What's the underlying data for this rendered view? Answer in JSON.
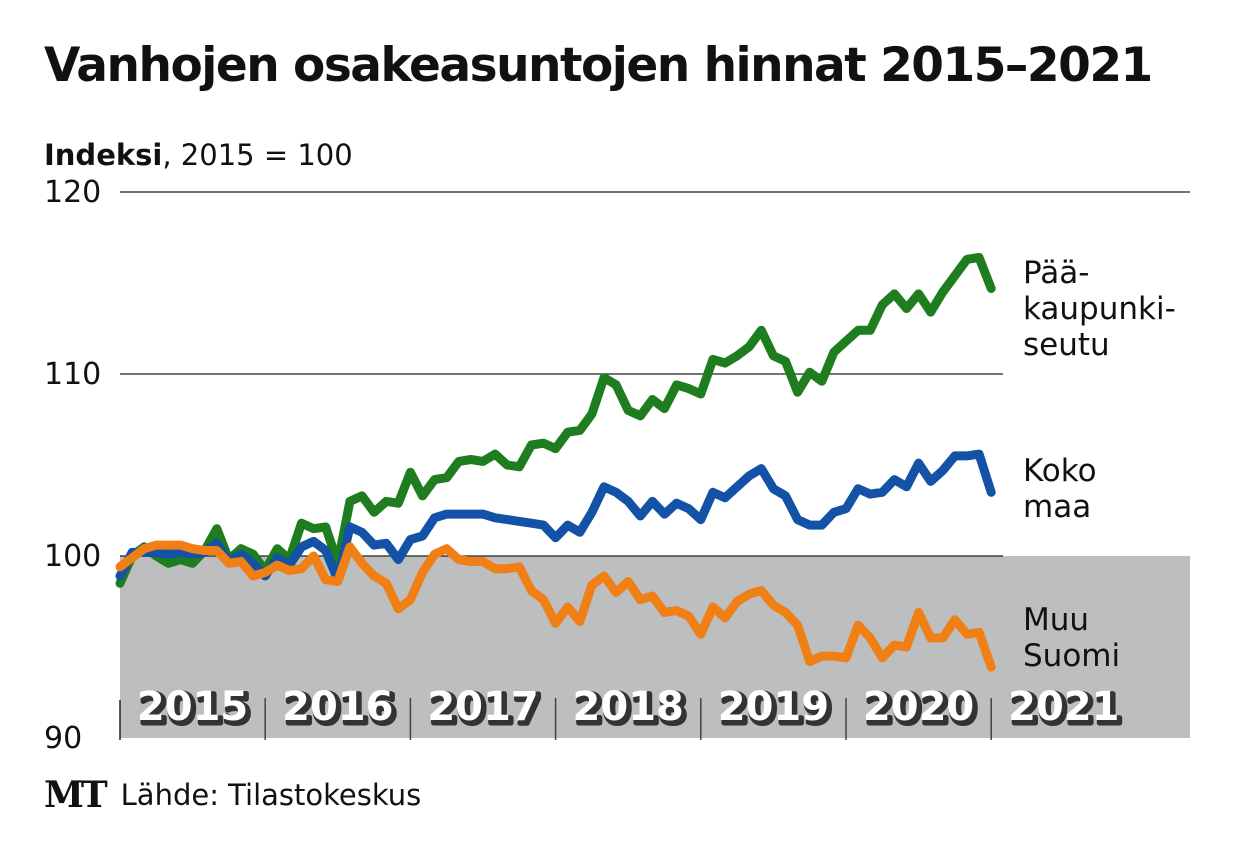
{
  "title": "Vanhojen osakeasuntojen hinnat 2015–2021",
  "subtitle": {
    "bold": "Indeksi",
    "rest": ", 2015 = 100"
  },
  "source": {
    "logo": "MT",
    "text": "Lähde: Tilastokeskus"
  },
  "chart_data": {
    "type": "line",
    "title": "Vanhojen osakeasuntojen hinnat 2015–2021",
    "ylabel": "Indeksi, 2015 = 100",
    "xlabel": "",
    "ylim": [
      90,
      120
    ],
    "yticks": [
      90,
      100,
      110,
      120
    ],
    "grid": "horizontal",
    "shaded_below": 100,
    "shade_color": "#bdbebf",
    "year_labels": [
      "2015",
      "2016",
      "2017",
      "2018",
      "2019",
      "2020",
      "2021"
    ],
    "x_start": 2015.0,
    "series": [
      {
        "name": "Pääkaupunkiseutu",
        "label_lines": [
          "Pää-",
          "kaupunki-",
          "seutu"
        ],
        "color": "#1e7d1e",
        "values": [
          98.5,
          100.0,
          100.5,
          100.0,
          99.6,
          99.8,
          99.6,
          100.3,
          101.5,
          99.8,
          100.4,
          100.1,
          99.2,
          100.4,
          99.8,
          101.8,
          101.5,
          101.6,
          99.6,
          103.0,
          103.3,
          102.4,
          103.0,
          102.9,
          104.6,
          103.3,
          104.2,
          104.3,
          105.2,
          105.3,
          105.2,
          105.6,
          105.0,
          104.9,
          106.1,
          106.2,
          105.9,
          106.8,
          106.9,
          107.8,
          109.8,
          109.4,
          108.0,
          107.7,
          108.6,
          108.1,
          109.4,
          109.2,
          108.9,
          110.8,
          110.6,
          111.0,
          111.5,
          112.4,
          111.0,
          110.7,
          109.0,
          110.1,
          109.6,
          111.2,
          111.8,
          112.4,
          112.4,
          113.8,
          114.4,
          113.6,
          114.4,
          113.4,
          114.5,
          115.4,
          116.3,
          116.4,
          114.7
        ]
      },
      {
        "name": "Koko maa",
        "label_lines": [
          "Koko",
          "maa"
        ],
        "color": "#1352a6",
        "values": [
          98.9,
          100.2,
          100.2,
          100.2,
          100.1,
          100.2,
          100.1,
          100.2,
          100.7,
          99.7,
          100.1,
          99.6,
          98.9,
          99.9,
          99.5,
          100.5,
          100.8,
          100.3,
          98.7,
          101.6,
          101.3,
          100.6,
          100.7,
          99.8,
          100.9,
          101.1,
          102.1,
          102.3,
          102.3,
          102.3,
          102.3,
          102.1,
          102.0,
          101.9,
          101.8,
          101.7,
          101.0,
          101.7,
          101.3,
          102.4,
          103.8,
          103.5,
          103.0,
          102.2,
          103.0,
          102.3,
          102.9,
          102.6,
          102.0,
          103.5,
          103.2,
          103.8,
          104.4,
          104.8,
          103.7,
          103.3,
          102.0,
          101.7,
          101.7,
          102.4,
          102.6,
          103.7,
          103.4,
          103.5,
          104.2,
          103.8,
          105.1,
          104.1,
          104.7,
          105.5,
          105.5,
          105.6,
          103.5
        ]
      },
      {
        "name": "Muu Suomi",
        "label_lines": [
          "Muu",
          "Suomi"
        ],
        "color": "#f07f16",
        "values": [
          99.4,
          99.9,
          100.4,
          100.6,
          100.6,
          100.6,
          100.4,
          100.3,
          100.3,
          99.6,
          99.7,
          98.9,
          99.1,
          99.5,
          99.2,
          99.3,
          100.0,
          98.7,
          98.6,
          100.5,
          99.6,
          98.9,
          98.5,
          97.1,
          97.6,
          99.1,
          100.1,
          100.4,
          99.8,
          99.7,
          99.7,
          99.3,
          99.3,
          99.4,
          98.1,
          97.6,
          96.3,
          97.2,
          96.4,
          98.4,
          98.9,
          98.0,
          98.6,
          97.6,
          97.8,
          96.9,
          97.0,
          96.7,
          95.7,
          97.2,
          96.6,
          97.5,
          97.9,
          98.1,
          97.3,
          96.9,
          96.2,
          94.2,
          94.5,
          94.5,
          94.4,
          96.2,
          95.5,
          94.4,
          95.1,
          95.0,
          96.9,
          95.5,
          95.5,
          96.5,
          95.7,
          95.8,
          93.9
        ]
      }
    ]
  }
}
